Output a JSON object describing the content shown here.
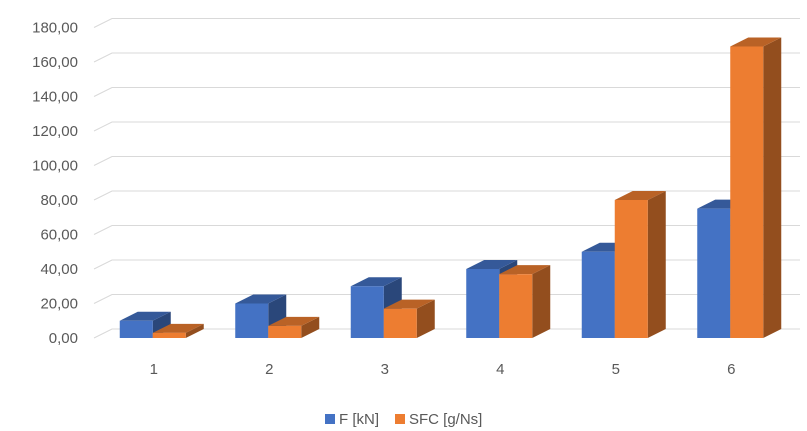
{
  "chart_data": {
    "type": "bar",
    "style": "3d-clustered-column",
    "categories": [
      "1",
      "2",
      "3",
      "4",
      "5",
      "6"
    ],
    "series": [
      {
        "name": "F [kN]",
        "color": "#4472C4",
        "values": [
          10,
          20,
          30,
          40,
          50,
          75
        ]
      },
      {
        "name": "SFC [g/Ns]",
        "color": "#ED7D31",
        "values": [
          3,
          7,
          17,
          37,
          80,
          169
        ]
      }
    ],
    "y_tick_labels": [
      "0,00",
      "20,00",
      "40,00",
      "60,00",
      "80,00",
      "100,00",
      "120,00",
      "140,00",
      "160,00",
      "180,00"
    ],
    "ylim": [
      0,
      180
    ],
    "grid": true,
    "legend_position": "bottom"
  }
}
